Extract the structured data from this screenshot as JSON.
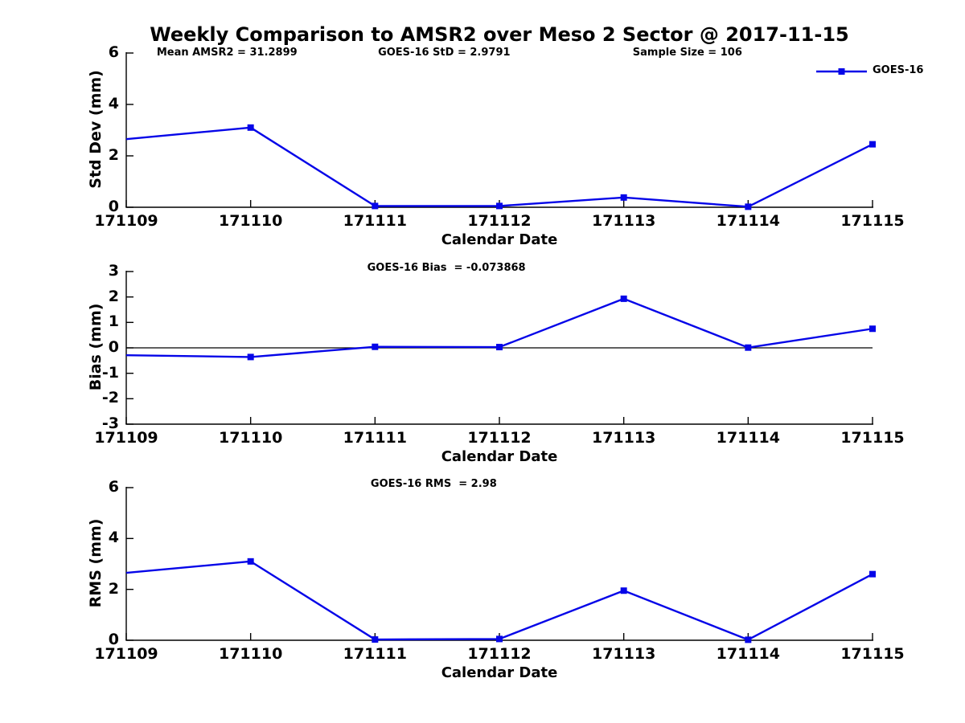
{
  "title": "Weekly Comparison to AMSR2 over Meso 2 Sector @ 2017-11-15",
  "legend": {
    "label": "GOES-16"
  },
  "colors": {
    "series": "#0505E8",
    "axis": "#000000",
    "zero_line": "#000000",
    "text": "#000000",
    "background": "#FFFFFF"
  },
  "chart_data": [
    {
      "type": "line",
      "ylabel": "Std Dev (mm)",
      "xlabel": "Calendar Date",
      "categories": [
        "171109",
        "171110",
        "171111",
        "171112",
        "171113",
        "171114",
        "171115"
      ],
      "series": [
        {
          "name": "GOES-16",
          "values": [
            2.65,
            3.1,
            0.05,
            0.05,
            0.38,
            0.02,
            2.45
          ]
        }
      ],
      "ylim": [
        0,
        6
      ],
      "yticks": [
        0,
        2,
        4,
        6
      ],
      "grid": false,
      "zero_line": false,
      "legend_position": "top-right",
      "annotations": [
        "Mean AMSR2 = 31.2899",
        "GOES-16 StD = 2.9791",
        "Sample Size = 106"
      ]
    },
    {
      "type": "line",
      "ylabel": "Bias (mm)",
      "xlabel": "Calendar Date",
      "categories": [
        "171109",
        "171110",
        "171111",
        "171112",
        "171113",
        "171114",
        "171115"
      ],
      "series": [
        {
          "name": "GOES-16",
          "values": [
            -0.29,
            -0.36,
            0.04,
            0.03,
            1.93,
            0.01,
            0.75
          ]
        }
      ],
      "ylim": [
        -3,
        3
      ],
      "yticks": [
        3,
        2,
        1,
        0,
        -1,
        -2,
        -3
      ],
      "grid": false,
      "zero_line": true,
      "legend_position": "none",
      "annotations": [
        "GOES-16 Bias  = -0.073868"
      ]
    },
    {
      "type": "line",
      "ylabel": "RMS (mm)",
      "xlabel": "Calendar Date",
      "categories": [
        "171109",
        "171110",
        "171111",
        "171112",
        "171113",
        "171114",
        "171115"
      ],
      "series": [
        {
          "name": "GOES-16",
          "values": [
            2.65,
            3.1,
            0.03,
            0.05,
            1.95,
            0.02,
            2.6
          ]
        }
      ],
      "ylim": [
        0,
        6
      ],
      "yticks": [
        0,
        2,
        4,
        6
      ],
      "grid": false,
      "zero_line": false,
      "legend_position": "none",
      "annotations": [
        "GOES-16 RMS  = 2.98"
      ]
    }
  ]
}
